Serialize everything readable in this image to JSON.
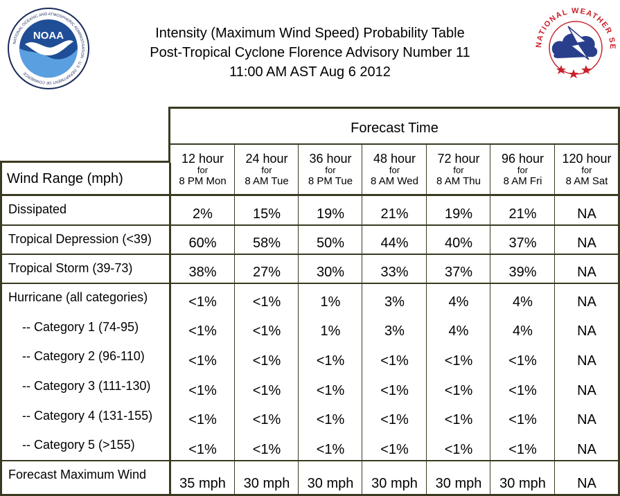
{
  "logos": {
    "noaa_text": "NOAA",
    "noaa_ring": "NATIONAL OCEANIC AND ATMOSPHERIC ADMINISTRATION · U.S. DEPARTMENT OF COMMERCE",
    "nws_ring": "NATIONAL WEATHER SERVICE"
  },
  "title": {
    "line1": "Intensity (Maximum Wind Speed) Probability Table",
    "line2": "Post-Tropical Cyclone Florence Advisory Number 11",
    "line3": "11:00 AM AST Aug 6 2012"
  },
  "table": {
    "forecast_time_label": "Forecast Time",
    "wind_range_label": "Wind Range (mph)",
    "columns": [
      {
        "hours": "12 hour",
        "for": "for",
        "when": "8 PM Mon"
      },
      {
        "hours": "24 hour",
        "for": "for",
        "when": "8 AM Tue"
      },
      {
        "hours": "36 hour",
        "for": "for",
        "when": "8 PM Tue"
      },
      {
        "hours": "48 hour",
        "for": "for",
        "when": "8 AM Wed"
      },
      {
        "hours": "72 hour",
        "for": "for",
        "when": "8 AM Thu"
      },
      {
        "hours": "96 hour",
        "for": "for",
        "when": "8 AM Fri"
      },
      {
        "hours": "120 hour",
        "for": "for",
        "when": "8 AM Sat"
      }
    ],
    "rows": [
      {
        "label": "Dissipated",
        "values": [
          "2%",
          "15%",
          "19%",
          "21%",
          "19%",
          "21%",
          "NA"
        ]
      },
      {
        "label": "Tropical Depression (<39)",
        "values": [
          "60%",
          "58%",
          "50%",
          "44%",
          "40%",
          "37%",
          "NA"
        ]
      },
      {
        "label": "Tropical Storm (39-73)",
        "values": [
          "38%",
          "27%",
          "30%",
          "33%",
          "37%",
          "39%",
          "NA"
        ]
      },
      {
        "label": "Hurricane (all categories)",
        "values": [
          "<1%",
          "<1%",
          "1%",
          "3%",
          "4%",
          "4%",
          "NA"
        ]
      },
      {
        "label": "-- Category 1 (74-95)",
        "values": [
          "<1%",
          "<1%",
          "1%",
          "3%",
          "4%",
          "4%",
          "NA"
        ]
      },
      {
        "label": "-- Category 2 (96-110)",
        "values": [
          "<1%",
          "<1%",
          "<1%",
          "<1%",
          "<1%",
          "<1%",
          "NA"
        ]
      },
      {
        "label": "-- Category 3 (111-130)",
        "values": [
          "<1%",
          "<1%",
          "<1%",
          "<1%",
          "<1%",
          "<1%",
          "NA"
        ]
      },
      {
        "label": "-- Category 4 (131-155)",
        "values": [
          "<1%",
          "<1%",
          "<1%",
          "<1%",
          "<1%",
          "<1%",
          "NA"
        ]
      },
      {
        "label": "-- Category 5 (>155)",
        "values": [
          "<1%",
          "<1%",
          "<1%",
          "<1%",
          "<1%",
          "<1%",
          "NA"
        ]
      },
      {
        "label": "Forecast Maximum Wind",
        "values": [
          "35 mph",
          "30 mph",
          "30 mph",
          "30 mph",
          "30 mph",
          "30 mph",
          "NA"
        ]
      }
    ]
  },
  "colors": {
    "border": "#3a3a22",
    "noaa_blue": "#1f4e96",
    "nws_red": "#c8202a",
    "nws_blue": "#2a3f8c"
  }
}
